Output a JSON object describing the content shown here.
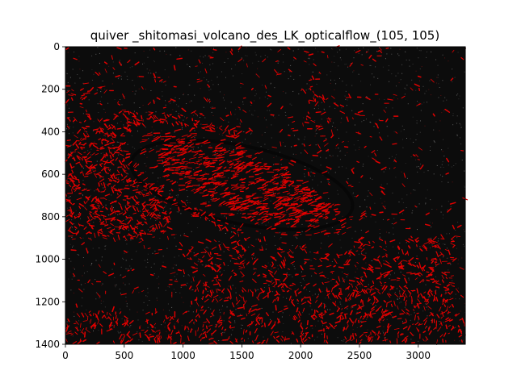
{
  "chart_data": {
    "type": "heatmap",
    "title": "quiver _shitomasi_volcano_des_LK_opticalflow_(105, 105)",
    "xlabel": "",
    "ylabel": "",
    "xlim": [
      0,
      3400
    ],
    "ylim": [
      1400,
      0
    ],
    "y_inverted": true,
    "x_ticks": [
      0,
      500,
      1000,
      1500,
      2000,
      2500,
      3000
    ],
    "y_ticks": [
      0,
      200,
      400,
      600,
      800,
      1000,
      1200,
      1400
    ],
    "grid": false,
    "background_color": "#0c0c0c",
    "arrow_color": "#e00000",
    "content": "optical flow quiver arrows over dark volcano image; densest flow inside elliptical crater centered near (1500, 650)"
  }
}
